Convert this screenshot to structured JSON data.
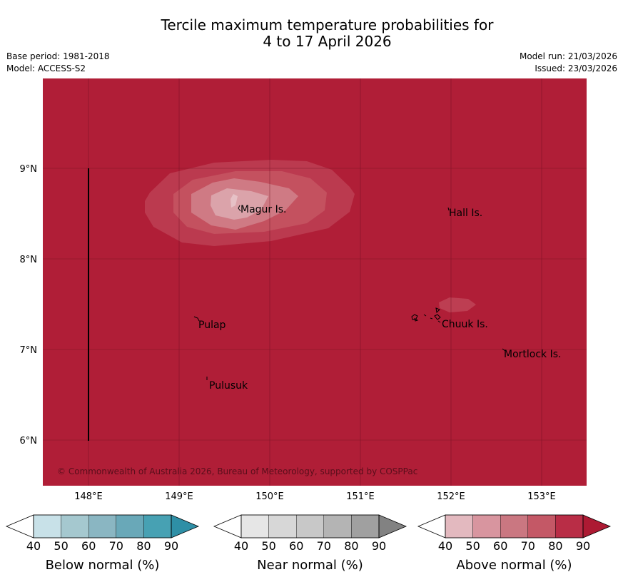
{
  "header": {
    "title_line1": "Tercile maximum temperature probabilities for",
    "title_line2": "4 to 17 April 2026",
    "base_period": "Base period: 1981-2018",
    "model": "Model: ACCESS-S2",
    "model_run": "Model run: 21/03/2026",
    "issued": "Issued: 23/03/2026"
  },
  "map": {
    "lat_labels": [
      "9°N",
      "8°N",
      "7°N",
      "6°N"
    ],
    "lon_labels": [
      "148°E",
      "149°E",
      "150°E",
      "151°E",
      "152°E",
      "153°E"
    ],
    "places": [
      "Magur Is.",
      "Hall Is.",
      "Pulap",
      "Chuuk Is.",
      "Mortlock Is.",
      "Pulusuk"
    ],
    "copyright": "© Commonwealth of Australia 2026, Bureau of Meteorology, supported by COSPPac",
    "background_color": "#b01e37",
    "anomaly_above_normal_percent": 80
  },
  "legend": {
    "ticks": [
      "40",
      "50",
      "60",
      "70",
      "80",
      "90"
    ],
    "below": {
      "title": "Below normal (%)",
      "colors": [
        "#ffffff",
        "#c8e1e8",
        "#a5c8cf",
        "#8ab6c2",
        "#69a8b8",
        "#47a1b3",
        "#2e8fa6"
      ]
    },
    "near": {
      "title": "Near normal (%)",
      "colors": [
        "#ffffff",
        "#e6e6e6",
        "#d7d7d7",
        "#c8c8c8",
        "#b4b4b4",
        "#a0a0a0",
        "#828282"
      ]
    },
    "above": {
      "title": "Above normal (%)",
      "colors": [
        "#ffffff",
        "#e3b9bf",
        "#d8959f",
        "#ca7781",
        "#c45866",
        "#b92d46",
        "#ad1a33"
      ]
    }
  }
}
